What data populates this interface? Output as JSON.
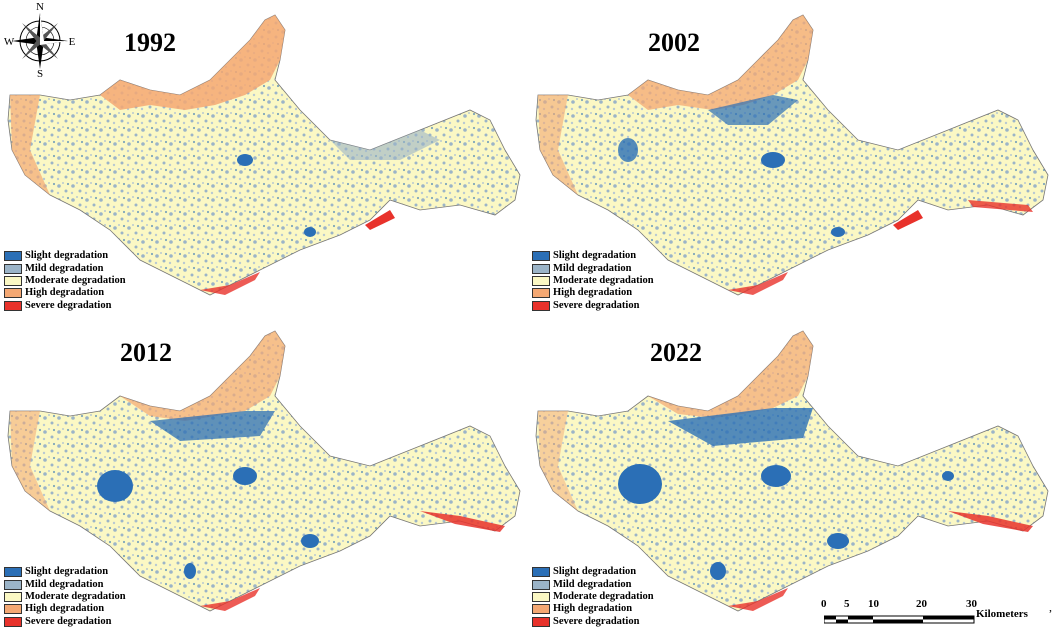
{
  "compass": {
    "north": "N",
    "south": "S",
    "east": "E",
    "west": "W"
  },
  "panels": [
    {
      "year": "1992"
    },
    {
      "year": "2002"
    },
    {
      "year": "2012"
    },
    {
      "year": "2022"
    }
  ],
  "legend": [
    {
      "label": "Slight degradation",
      "color": "#2b6fb6"
    },
    {
      "label": "Mild degradation",
      "color": "#9bb4c8"
    },
    {
      "label": "Moderate degradation",
      "color": "#fbf8c4"
    },
    {
      "label": "High degradation",
      "color": "#f4a873"
    },
    {
      "label": "Severe degradation",
      "color": "#e8322b"
    }
  ],
  "scale_bar": {
    "ticks": [
      "0",
      "5",
      "10",
      "20",
      "30"
    ],
    "unit": "Kilometers"
  },
  "stray_mark": ","
}
